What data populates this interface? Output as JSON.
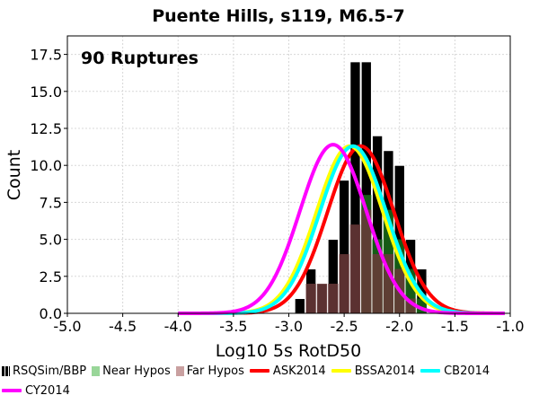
{
  "chart_data": {
    "type": "bar",
    "title": "Puente Hills, s119, M6.5-7",
    "xlabel": "Log10 5s RotD50",
    "ylabel": "Count",
    "xlim": [
      -5.0,
      -1.0
    ],
    "ylim": [
      0,
      18.75
    ],
    "x_ticks": [
      "-5.0",
      "-4.5",
      "-4.0",
      "-3.5",
      "-3.0",
      "-2.5",
      "-2.0",
      "-1.5",
      "-1.0"
    ],
    "y_ticks": [
      "0.0",
      "2.5",
      "5.0",
      "7.5",
      "10.0",
      "12.5",
      "15.0",
      "17.5"
    ],
    "annotation": "90 Ruptures",
    "grid": true,
    "legend_position": "bottom",
    "histogram": {
      "bin_width": 0.1,
      "bin_start": -2.95,
      "series": [
        {
          "name": "RSQSim/BBP",
          "color": "#000000",
          "values": [
            1,
            3,
            2,
            5,
            9,
            17,
            17,
            12,
            11,
            10,
            5,
            3
          ]
        },
        {
          "name": "Near Hypos",
          "color": "#1a6b1a",
          "values": [
            0,
            0,
            0,
            0,
            0,
            0,
            8,
            5,
            7,
            5,
            3,
            1
          ]
        },
        {
          "name": "Far Hypos",
          "color": "#6b3a3a",
          "values": [
            0,
            2,
            2,
            2,
            4,
            6,
            7,
            4,
            4,
            3,
            1,
            0
          ]
        }
      ]
    },
    "curves": [
      {
        "name": "ASK2014",
        "color": "#ff0000",
        "mean": -2.35,
        "sigma": 0.3,
        "peak": 11.3
      },
      {
        "name": "BSSA2014",
        "color": "#ffff00",
        "mean": -2.45,
        "sigma": 0.3,
        "peak": 11.3
      },
      {
        "name": "CB2014",
        "color": "#00ffff",
        "mean": -2.42,
        "sigma": 0.3,
        "peak": 11.3
      },
      {
        "name": "CY2014",
        "color": "#ff00ff",
        "mean": -2.6,
        "sigma": 0.3,
        "peak": 11.4
      }
    ]
  }
}
